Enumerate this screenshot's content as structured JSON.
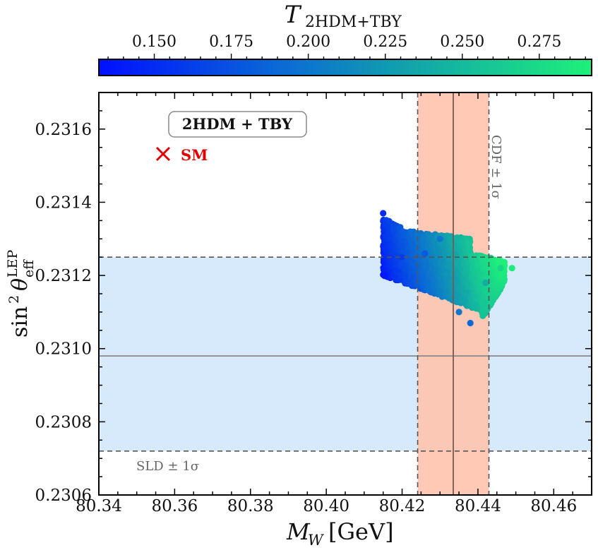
{
  "chart_data": {
    "type": "scatter",
    "title": "",
    "colorbar": {
      "label_main": "T",
      "label_sub": "2HDM+TBY",
      "range": [
        0.132,
        0.292
      ],
      "ticks": [
        0.15,
        0.175,
        0.2,
        0.225,
        0.25,
        0.275
      ],
      "tick_labels": [
        "0.150",
        "0.175",
        "0.200",
        "0.225",
        "0.250",
        "0.275"
      ],
      "colors": [
        "#0010ff",
        "#0a66d8",
        "#12a8a8",
        "#1ef07a"
      ]
    },
    "xlabel_main": "M",
    "xlabel_sub": "W",
    "xlabel_unit": "[GeV]",
    "ylabel_main": "sin",
    "ylabel_sup2": "2",
    "ylabel_theta": "θ",
    "ylabel_sub": "eff",
    "ylabel_sup": "LEP",
    "xlim": [
      80.34,
      80.47
    ],
    "ylim": [
      0.2306,
      0.2317
    ],
    "xticks": [
      80.34,
      80.36,
      80.38,
      80.4,
      80.42,
      80.44,
      80.46
    ],
    "xtick_labels": [
      "80.34",
      "80.36",
      "80.38",
      "80.40",
      "80.42",
      "80.44",
      "80.46"
    ],
    "yticks": [
      0.2306,
      0.2308,
      0.231,
      0.2312,
      0.2314,
      0.2316
    ],
    "ytick_labels": [
      "0.2306",
      "0.2308",
      "0.2310",
      "0.2312",
      "0.2314",
      "0.2316"
    ],
    "cdf_band": {
      "center": 80.4335,
      "low": 80.4241,
      "high": 80.4429,
      "label": "CDF ± 1σ",
      "color": "#ffc4b0"
    },
    "sld_band": {
      "center": 0.23098,
      "low": 0.23072,
      "high": 0.23125,
      "label": "SLD ± 1σ",
      "color": "#d6eafc"
    },
    "legend": {
      "box_label": "2HDM + TBY",
      "sm_label": "SM",
      "sm_color": "#e00000",
      "position": "top-left"
    },
    "scatter_region": {
      "description_points": [
        {
          "x": 80.415,
          "y": 0.23137,
          "t": 0.15
        },
        {
          "x": 80.4155,
          "y": 0.2312,
          "t": 0.14
        },
        {
          "x": 80.42,
          "y": 0.23125,
          "t": 0.16
        },
        {
          "x": 80.426,
          "y": 0.23126,
          "t": 0.18
        },
        {
          "x": 80.43,
          "y": 0.2313,
          "t": 0.2
        },
        {
          "x": 80.435,
          "y": 0.2311,
          "t": 0.2
        },
        {
          "x": 80.438,
          "y": 0.23107,
          "t": 0.19
        },
        {
          "x": 80.442,
          "y": 0.23118,
          "t": 0.24
        },
        {
          "x": 80.446,
          "y": 0.23122,
          "t": 0.27
        },
        {
          "x": 80.449,
          "y": 0.23122,
          "t": 0.29
        }
      ]
    }
  }
}
